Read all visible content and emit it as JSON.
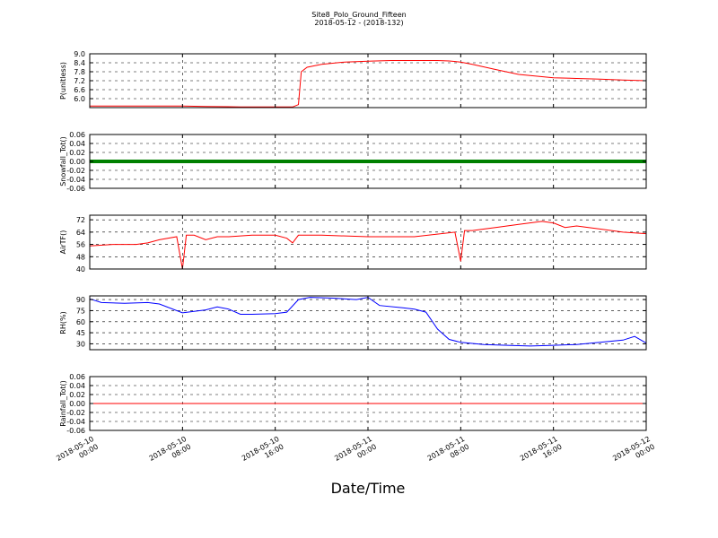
{
  "title": "Site8_Polo_Ground_Fifteen",
  "subtitle": "2018-05-12 - (2018-132)",
  "chart_data": {
    "type": "line",
    "title": "Site8_Polo_Ground_Fifteen",
    "subtitle": "2018-05-12 - (2018-132)",
    "xlabel": "Date/Time",
    "x_range": [
      "2018-05-10 00:00",
      "2018-05-12 00:00"
    ],
    "x_ticks": [
      "2018-05-10 00:00",
      "2018-05-10 08:00",
      "2018-05-10 16:00",
      "2018-05-11 00:00",
      "2018-05-11 08:00",
      "2018-05-11 16:00",
      "2018-05-12 00:00"
    ],
    "x_tick_labels": [
      [
        "2018-05-10",
        "00:00"
      ],
      [
        "2018-05-10",
        "08:00"
      ],
      [
        "2018-05-10",
        "16:00"
      ],
      [
        "2018-05-11",
        "00:00"
      ],
      [
        "2018-05-11",
        "08:00"
      ],
      [
        "2018-05-11",
        "16:00"
      ],
      [
        "2018-05-12",
        "00:00"
      ]
    ],
    "grid": true,
    "panels": [
      {
        "ylabel": "P(unitless)",
        "color": "#ff0000",
        "ylim": [
          5.4,
          9.0
        ],
        "yticks": [
          6.0,
          6.6,
          7.2,
          7.8,
          8.4,
          9.0
        ],
        "ytick_labels": [
          "6.0",
          "6.6",
          "7.2",
          "7.8",
          "8.4",
          "9.0"
        ],
        "x": [
          "2018-05-10 00:00",
          "2018-05-10 08:00",
          "2018-05-10 10:00",
          "2018-05-10 13:00",
          "2018-05-10 16:00",
          "2018-05-10 17:30",
          "2018-05-10 18:00",
          "2018-05-10 18:15",
          "2018-05-10 18:45",
          "2018-05-10 20:00",
          "2018-05-10 22:00",
          "2018-05-11 00:00",
          "2018-05-11 02:00",
          "2018-05-11 04:00",
          "2018-05-11 06:00",
          "2018-05-11 07:00",
          "2018-05-11 08:00",
          "2018-05-11 09:00",
          "2018-05-11 11:00",
          "2018-05-11 13:00",
          "2018-05-11 16:00",
          "2018-05-11 18:00",
          "2018-05-11 20:00",
          "2018-05-11 22:00",
          "2018-05-12 00:00"
        ],
        "y": [
          5.5,
          5.5,
          5.48,
          5.45,
          5.44,
          5.44,
          5.6,
          7.8,
          8.1,
          8.3,
          8.45,
          8.5,
          8.55,
          8.55,
          8.55,
          8.52,
          8.45,
          8.3,
          7.95,
          7.62,
          7.4,
          7.35,
          7.3,
          7.25,
          7.2
        ]
      },
      {
        "ylabel": "Snowfall_Tot()",
        "color": "#008000",
        "thick": true,
        "ylim": [
          -0.06,
          0.06
        ],
        "yticks": [
          -0.06,
          -0.04,
          -0.02,
          0.0,
          0.02,
          0.04,
          0.06
        ],
        "ytick_labels": [
          "-0.06",
          "-0.04",
          "-0.02",
          "0.00",
          "0.02",
          "0.04",
          "0.06"
        ],
        "x": [
          "2018-05-10 00:00",
          "2018-05-12 00:00"
        ],
        "y": [
          0.0,
          0.0
        ]
      },
      {
        "ylabel": "AirTF()",
        "color": "#ff0000",
        "ylim": [
          40,
          75
        ],
        "yticks": [
          40,
          48,
          56,
          64,
          72
        ],
        "ytick_labels": [
          "40",
          "48",
          "56",
          "64",
          "72"
        ],
        "x": [
          "2018-05-10 00:00",
          "2018-05-10 02:00",
          "2018-05-10 04:00",
          "2018-05-10 05:00",
          "2018-05-10 06:00",
          "2018-05-10 07:30",
          "2018-05-10 08:00",
          "2018-05-10 08:20",
          "2018-05-10 09:00",
          "2018-05-10 10:00",
          "2018-05-10 11:00",
          "2018-05-10 12:00",
          "2018-05-10 14:00",
          "2018-05-10 16:00",
          "2018-05-10 17:00",
          "2018-05-10 17:30",
          "2018-05-10 18:00",
          "2018-05-10 20:00",
          "2018-05-11 00:00",
          "2018-05-11 04:00",
          "2018-05-11 07:30",
          "2018-05-11 08:00",
          "2018-05-11 08:20",
          "2018-05-11 09:00",
          "2018-05-11 11:00",
          "2018-05-11 13:00",
          "2018-05-11 15:00",
          "2018-05-11 16:00",
          "2018-05-11 17:00",
          "2018-05-11 18:00",
          "2018-05-11 20:00",
          "2018-05-11 22:00",
          "2018-05-12 00:00"
        ],
        "y": [
          55,
          56,
          56,
          57,
          59,
          61,
          40,
          62,
          62,
          59,
          61,
          61,
          62,
          62,
          60,
          57,
          62,
          62,
          61,
          61,
          64,
          45,
          65,
          65,
          67,
          69,
          71,
          70,
          67,
          68,
          66,
          64,
          63
        ]
      },
      {
        "ylabel": "RH(%)",
        "color": "#0000ff",
        "ylim": [
          22,
          95
        ],
        "yticks": [
          30,
          45,
          60,
          75,
          90
        ],
        "ytick_labels": [
          "30",
          "45",
          "60",
          "75",
          "90"
        ],
        "x": [
          "2018-05-10 00:00",
          "2018-05-10 01:00",
          "2018-05-10 03:00",
          "2018-05-10 05:00",
          "2018-05-10 06:00",
          "2018-05-10 08:00",
          "2018-05-10 10:00",
          "2018-05-10 11:00",
          "2018-05-10 12:00",
          "2018-05-10 13:00",
          "2018-05-10 14:00",
          "2018-05-10 16:00",
          "2018-05-10 17:00",
          "2018-05-10 18:00",
          "2018-05-10 19:00",
          "2018-05-10 21:00",
          "2018-05-10 23:00",
          "2018-05-11 00:00",
          "2018-05-11 01:00",
          "2018-05-11 03:00",
          "2018-05-11 04:00",
          "2018-05-11 05:00",
          "2018-05-11 06:00",
          "2018-05-11 07:00",
          "2018-05-11 08:00",
          "2018-05-11 10:00",
          "2018-05-11 12:00",
          "2018-05-11 14:00",
          "2018-05-11 16:00",
          "2018-05-11 18:00",
          "2018-05-11 20:00",
          "2018-05-11 22:00",
          "2018-05-11 23:00",
          "2018-05-12 00:00"
        ],
        "y": [
          91,
          86,
          85,
          86,
          84,
          72,
          76,
          80,
          77,
          70,
          70,
          71,
          73,
          90,
          93,
          92,
          90,
          93,
          82,
          79,
          77,
          73,
          50,
          36,
          32,
          29,
          28,
          27,
          28,
          29,
          32,
          35,
          40,
          31
        ]
      },
      {
        "ylabel": "Rainfall_Tot()",
        "color": "#ff0000",
        "ylim": [
          -0.06,
          0.06
        ],
        "yticks": [
          -0.06,
          -0.04,
          -0.02,
          0.0,
          0.02,
          0.04,
          0.06
        ],
        "ytick_labels": [
          "-0.06",
          "-0.04",
          "-0.02",
          "0.00",
          "0.02",
          "0.04",
          "0.06"
        ],
        "x": [
          "2018-05-10 00:00",
          "2018-05-12 00:00"
        ],
        "y": [
          0.0,
          0.0
        ]
      }
    ]
  }
}
